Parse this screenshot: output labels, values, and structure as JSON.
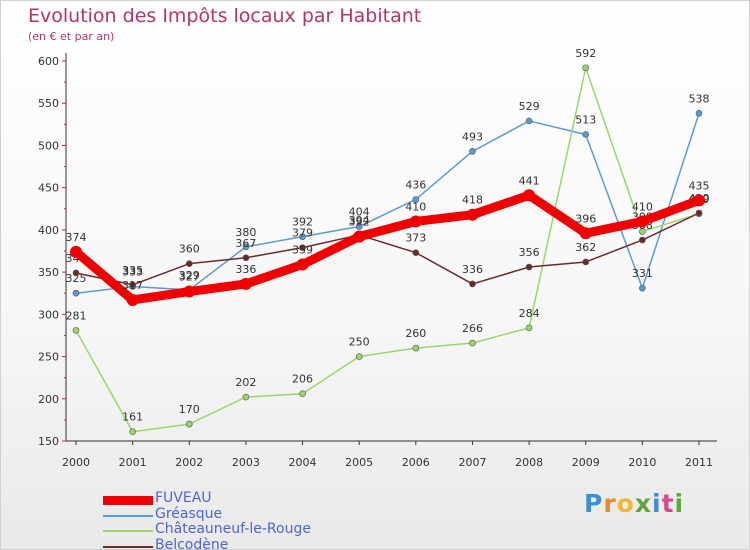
{
  "header": {
    "title": "Evolution des Impôts locaux par Habitant",
    "subtitle": "(en € et par an)"
  },
  "brand": {
    "text": "Proxiti",
    "colors": [
      "#3a8fd6",
      "#e8892a",
      "#f2b630",
      "#5aa83a",
      "#3a8fd6",
      "#d84b8f",
      "#5aa83a"
    ]
  },
  "chart_data": {
    "type": "line",
    "x": [
      "2000",
      "2001",
      "2002",
      "2003",
      "2004",
      "2005",
      "2006",
      "2007",
      "2008",
      "2009",
      "2010",
      "2011"
    ],
    "ylim": [
      150,
      600
    ],
    "yticks": [
      "150",
      "200",
      "250",
      "300",
      "350",
      "400",
      "450",
      "500",
      "550",
      "600"
    ],
    "grid": false,
    "legend_position": "bottom-left",
    "series": [
      {
        "name": "Gréasque",
        "color": "#5b9bd5",
        "values": [
          325,
          333,
          329,
          380,
          392,
          404,
          436,
          493,
          529,
          513,
          331,
          538
        ],
        "labels": [
          "325",
          "333",
          "329",
          "380",
          "392",
          "404",
          "436",
          "493",
          "529",
          "513",
          "331",
          "538"
        ]
      },
      {
        "name": "Châteauneuf-le-Rouge",
        "color": "#9bd66b",
        "values": [
          281,
          161,
          170,
          202,
          206,
          250,
          260,
          266,
          284,
          592,
          398,
          419
        ],
        "labels": [
          "281",
          "161",
          "170",
          "202",
          "206",
          "250",
          "260",
          "266",
          "284",
          "592",
          "398",
          "419"
        ]
      },
      {
        "name": "Belcodène",
        "color": "#6e2a2a",
        "values": [
          349,
          335,
          360,
          367,
          379,
          394,
          373,
          336,
          356,
          362,
          388,
          420
        ],
        "labels": [
          "349",
          "335",
          "360",
          "367",
          "379",
          "394",
          "373",
          "336",
          "356",
          "362",
          "388",
          "420"
        ]
      },
      {
        "name": "FUVEAU",
        "color": "#f00000",
        "values": [
          374,
          317,
          327,
          336,
          359,
          392,
          410,
          418,
          441,
          396,
          410,
          435
        ],
        "labels": [
          "374",
          "317",
          "327",
          "336",
          "359",
          "392",
          "410",
          "418",
          "441",
          "396",
          "410",
          "435"
        ]
      }
    ]
  },
  "legend": [
    {
      "name": "FUVEAU",
      "color": "#f00000",
      "width": 9
    },
    {
      "name": "Gréasque",
      "color": "#5b9bd5",
      "width": 2
    },
    {
      "name": "Châteauneuf-le-Rouge",
      "color": "#9bd66b",
      "width": 2
    },
    {
      "name": "Belcodène",
      "color": "#6e2a2a",
      "width": 2
    }
  ]
}
